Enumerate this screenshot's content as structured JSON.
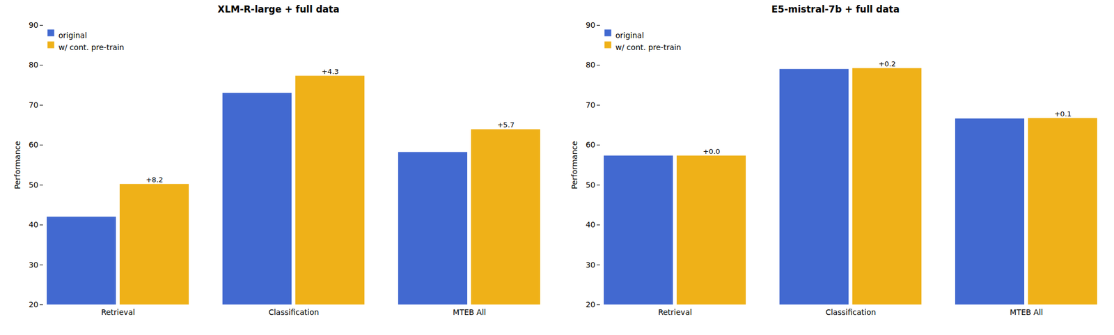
{
  "chart_data": [
    {
      "type": "bar",
      "title": "XLM-R-large + full data",
      "ylabel": "Performance",
      "categories": [
        "Retrieval",
        "Classification",
        "MTEB All"
      ],
      "series": [
        {
          "name": "original",
          "values": [
            42.0,
            73.0,
            58.2
          ]
        },
        {
          "name": "w/ cont. pre-train",
          "values": [
            50.2,
            77.3,
            63.9
          ],
          "annotations": [
            "+8.2",
            "+4.3",
            "+5.7"
          ]
        }
      ],
      "ylim": [
        20,
        90
      ],
      "yticks": [
        20,
        30,
        40,
        50,
        60,
        70,
        80,
        90
      ],
      "legend": "upper left"
    },
    {
      "type": "bar",
      "title": "E5-mistral-7b + full data",
      "ylabel": "Performance",
      "categories": [
        "Retrieval",
        "Classification",
        "MTEB All"
      ],
      "series": [
        {
          "name": "original",
          "values": [
            57.3,
            79.0,
            66.6
          ]
        },
        {
          "name": "w/ cont. pre-train",
          "values": [
            57.3,
            79.2,
            66.7
          ],
          "annotations": [
            "+0.0",
            "+0.2",
            "+0.1"
          ]
        }
      ],
      "ylim": [
        20,
        90
      ],
      "yticks": [
        20,
        30,
        40,
        50,
        60,
        70,
        80,
        90
      ],
      "legend": "upper left"
    }
  ]
}
